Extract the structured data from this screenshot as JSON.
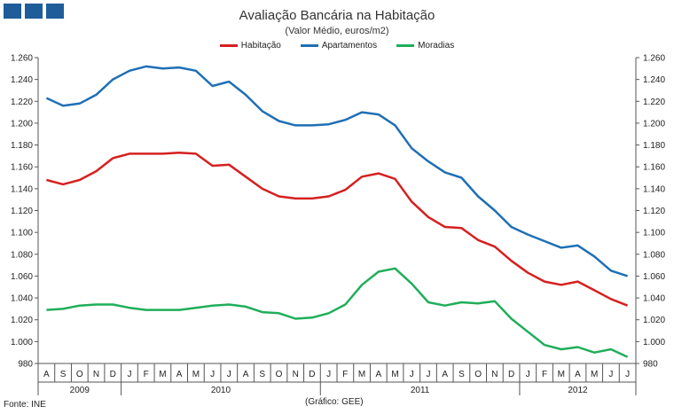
{
  "header": {
    "title": "Avaliação Bancária na Habitação",
    "subtitle": "(Valor Médio, euros/m2)"
  },
  "footer": {
    "source": "Fonte: INE",
    "credit": "(Gráfico: GEE)"
  },
  "chart_data": {
    "type": "line",
    "title": "Avaliação Bancária na Habitação",
    "subtitle": "(Valor Médio, euros/m2)",
    "ylim": [
      980,
      1260
    ],
    "y_ticks": [
      "980",
      "1.000",
      "1.020",
      "1.040",
      "1.060",
      "1.080",
      "1.100",
      "1.120",
      "1.140",
      "1.160",
      "1.180",
      "1.200",
      "1.220",
      "1.240",
      "1.260"
    ],
    "y_tick_values": [
      980,
      1000,
      1020,
      1040,
      1060,
      1080,
      1100,
      1120,
      1140,
      1160,
      1180,
      1200,
      1220,
      1240,
      1260
    ],
    "categories": [
      "A",
      "S",
      "O",
      "N",
      "D",
      "J",
      "F",
      "M",
      "A",
      "M",
      "J",
      "J",
      "A",
      "S",
      "O",
      "N",
      "D",
      "J",
      "F",
      "M",
      "A",
      "M",
      "J",
      "J",
      "A",
      "S",
      "O",
      "N",
      "D",
      "J",
      "F",
      "M",
      "A",
      "M",
      "J",
      "J"
    ],
    "years": [
      {
        "label": "2009",
        "start": 0,
        "end": 5
      },
      {
        "label": "2010",
        "start": 5,
        "end": 17
      },
      {
        "label": "2011",
        "start": 17,
        "end": 29
      },
      {
        "label": "2012",
        "start": 29,
        "end": 36
      }
    ],
    "legend_position": "top-center",
    "series": [
      {
        "name": "Habitação",
        "color": "#d62020",
        "values": [
          1148,
          1144,
          1148,
          1156,
          1168,
          1172,
          1172,
          1172,
          1173,
          1172,
          1161,
          1162,
          1151,
          1140,
          1133,
          1131,
          1131,
          1133,
          1139,
          1151,
          1154,
          1149,
          1128,
          1114,
          1105,
          1104,
          1093,
          1087,
          1074,
          1063,
          1055,
          1052,
          1055,
          1047,
          1039,
          1033
        ]
      },
      {
        "name": "Apartamentos",
        "color": "#1f6fb5",
        "values": [
          1223,
          1216,
          1218,
          1226,
          1240,
          1248,
          1252,
          1250,
          1251,
          1248,
          1234,
          1238,
          1226,
          1211,
          1202,
          1198,
          1198,
          1199,
          1203,
          1210,
          1208,
          1198,
          1177,
          1165,
          1155,
          1150,
          1133,
          1120,
          1105,
          1098,
          1092,
          1086,
          1088,
          1078,
          1065,
          1060
        ]
      },
      {
        "name": "Moradias",
        "color": "#1fae5a",
        "values": [
          1029,
          1030,
          1033,
          1034,
          1034,
          1031,
          1029,
          1029,
          1029,
          1031,
          1033,
          1034,
          1032,
          1027,
          1026,
          1021,
          1022,
          1026,
          1034,
          1052,
          1064,
          1067,
          1053,
          1036,
          1033,
          1036,
          1035,
          1037,
          1021,
          1009,
          997,
          993,
          995,
          990,
          993,
          986
        ]
      }
    ]
  }
}
